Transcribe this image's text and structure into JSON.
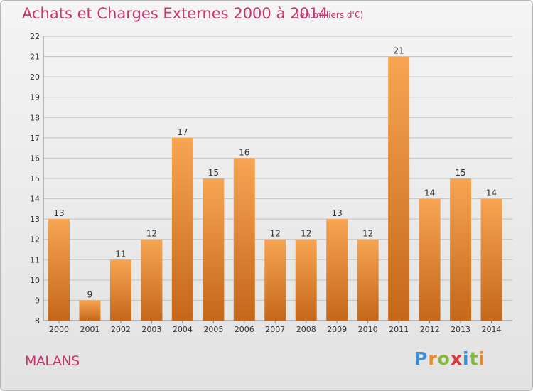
{
  "header": {
    "title": "Achats et Charges Externes 2000 à 2014",
    "unit": "(en milliers d'€)"
  },
  "footer": {
    "town": "MALANS",
    "logo": {
      "letters": [
        "P",
        "r",
        "o",
        "x",
        "i",
        "t",
        "i"
      ],
      "colors": [
        "#3b8fd6",
        "#e8892a",
        "#84b83a",
        "#d9353a",
        "#3b8fd6",
        "#84b83a",
        "#e8892a"
      ]
    }
  },
  "colors": {
    "bar_top": "#f7a552",
    "bar_bottom": "#c4671a",
    "grid": "#c2c2c2",
    "axis_text": "#333333",
    "title": "#c8356e"
  },
  "chart_data": {
    "type": "bar",
    "categories": [
      "2000",
      "2001",
      "2002",
      "2003",
      "2004",
      "2005",
      "2006",
      "2007",
      "2008",
      "2009",
      "2010",
      "2011",
      "2012",
      "2013",
      "2014"
    ],
    "values": [
      13,
      9,
      11,
      12,
      17,
      15,
      16,
      12,
      12,
      13,
      12,
      21,
      14,
      15,
      14
    ],
    "yticks": [
      8,
      9,
      10,
      11,
      12,
      13,
      14,
      15,
      16,
      17,
      18,
      19,
      20,
      21,
      22
    ],
    "ylim": [
      8,
      22
    ],
    "grid": true,
    "legend": "none"
  }
}
